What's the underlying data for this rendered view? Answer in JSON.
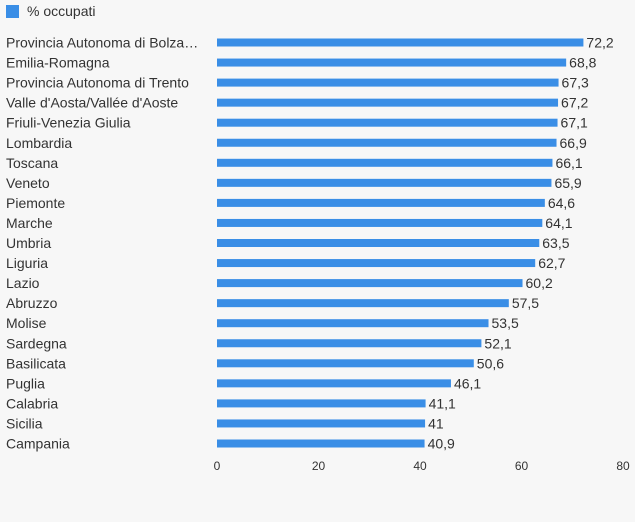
{
  "chart_data": {
    "type": "bar",
    "orientation": "horizontal",
    "categories": [
      "Provincia Autonoma di Bolza…",
      "Emilia-Romagna",
      "Provincia Autonoma di Trento",
      "Valle d'Aosta/Vallée d'Aoste",
      "Friuli-Venezia Giulia",
      "Lombardia",
      "Toscana",
      "Veneto",
      "Piemonte",
      "Marche",
      "Umbria",
      "Liguria",
      "Lazio",
      "Abruzzo",
      "Molise",
      "Sardegna",
      "Basilicata",
      "Puglia",
      "Calabria",
      "Sicilia",
      "Campania"
    ],
    "series": [
      {
        "name": "% occupati",
        "color": "#3a8ee6",
        "values": [
          72.2,
          68.8,
          67.3,
          67.2,
          67.1,
          66.9,
          66.1,
          65.9,
          64.6,
          64.1,
          63.5,
          62.7,
          60.2,
          57.5,
          53.5,
          52.1,
          50.6,
          46.1,
          41.1,
          41,
          40.9
        ],
        "value_labels": [
          "72,2",
          "68,8",
          "67,3",
          "67,2",
          "67,1",
          "66,9",
          "66,1",
          "65,9",
          "64,6",
          "64,1",
          "63,5",
          "62,7",
          "60,2",
          "57,5",
          "53,5",
          "52,1",
          "50,6",
          "46,1",
          "41,1",
          "41",
          "40,9"
        ]
      }
    ],
    "xlim": [
      0,
      80
    ],
    "xticks": [
      0,
      20,
      40,
      60,
      80
    ],
    "grid": false,
    "legend": {
      "position": "top-left",
      "entries": [
        "% occupati"
      ]
    },
    "title": "",
    "xlabel": "",
    "ylabel": ""
  }
}
